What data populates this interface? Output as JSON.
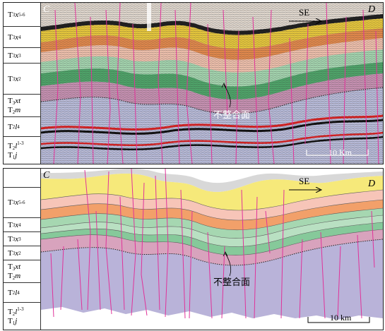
{
  "top_panel": {
    "corner_left": "C",
    "corner_right": "D",
    "direction_label": "SE",
    "unconformity_label": "不整合面",
    "scale_label": "10 Km",
    "legend": [
      {
        "base": "T",
        "sub": "3",
        "main": "x",
        "sup": "5-6"
      },
      {
        "base": "T",
        "sub": "3",
        "main": "x",
        "sup": "4"
      },
      {
        "base": "T",
        "sub": "3",
        "main": "x",
        "sup": "3"
      },
      {
        "base": "T",
        "sub": "3",
        "main": "x",
        "sup": "2"
      },
      {
        "base": "T",
        "sub": "3",
        "main": "xt",
        "sup": ""
      },
      {
        "base": "T",
        "sub": "2",
        "main": "m",
        "sup": ""
      },
      {
        "base": "T",
        "sub": "2",
        "main": "l",
        "sup": "4"
      },
      {
        "base": "T",
        "sub": "2",
        "main": "l",
        "sup": "1-3"
      },
      {
        "base": "T",
        "sub": "1",
        "main": "j",
        "sup": ""
      }
    ]
  },
  "bottom_panel": {
    "corner_left": "C",
    "corner_right": "D",
    "direction_label": "SE",
    "unconformity_label": "不整合面",
    "scale_label": "10 km",
    "legend": [
      {
        "base": "T",
        "sub": "3",
        "main": "x",
        "sup": "5-6"
      },
      {
        "base": "T",
        "sub": "3",
        "main": "x",
        "sup": "4"
      },
      {
        "base": "T",
        "sub": "3",
        "main": "x",
        "sup": "3"
      },
      {
        "base": "T",
        "sub": "3",
        "main": "x",
        "sup": "2"
      },
      {
        "base": "T",
        "sub": "3",
        "main": "xt",
        "sup": ""
      },
      {
        "base": "T",
        "sub": "2",
        "main": "m",
        "sup": ""
      },
      {
        "base": "T",
        "sub": "2",
        "main": "l",
        "sup": "4"
      },
      {
        "base": "T",
        "sub": "2",
        "main": "l",
        "sup": "1-3"
      },
      {
        "base": "T",
        "sub": "1",
        "main": "j",
        "sup": ""
      }
    ]
  },
  "colors": {
    "x56": "#f6e97a",
    "x4": "#f7c5b8",
    "x3": "#f2a06a",
    "x2_upper": "#b9e0c2",
    "x2_lower": "#86c99a",
    "xt": "#d8a3bd",
    "deep": "#b9b3d9",
    "fault": "#e0339a",
    "seis_bg": "#d9dde9"
  }
}
